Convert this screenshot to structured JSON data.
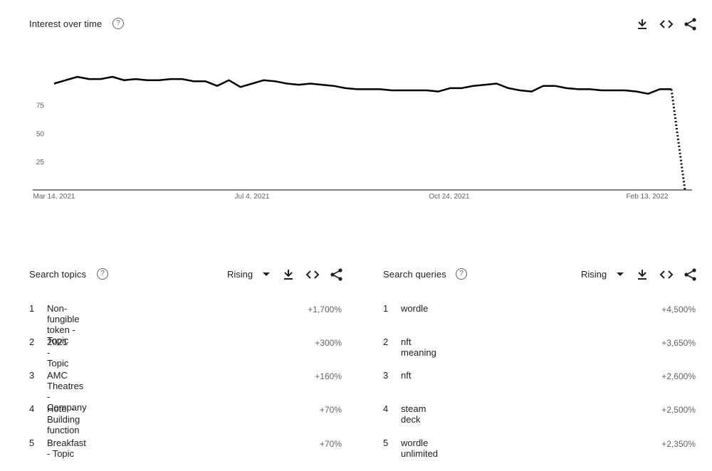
{
  "interest_over_time": {
    "title": "Interest over time",
    "help_symbol": "?",
    "icons": {
      "download": "download-icon",
      "embed": "embed-icon",
      "share": "share-icon"
    }
  },
  "chart_data": {
    "type": "line",
    "title": "Interest over time",
    "xlabel": "",
    "ylabel": "",
    "x_tick_labels": [
      "Mar 14, 2021",
      "Jul 4, 2021",
      "Oct 24, 2021",
      "Feb 13, 2022"
    ],
    "y_tick_labels": [
      "",
      "75",
      "50",
      "25"
    ],
    "y_ticks": [
      100,
      75,
      50,
      25
    ],
    "ylim": [
      0,
      105
    ],
    "grid": false,
    "line_color": "#000000",
    "series": [
      {
        "values": [
          94,
          97,
          100,
          98,
          98,
          100,
          97,
          98,
          97,
          97,
          98,
          98,
          96,
          96,
          92,
          97,
          91,
          94,
          97,
          96,
          94,
          93,
          94,
          93,
          92,
          90,
          89,
          89,
          89,
          88,
          88,
          88,
          88,
          87,
          90,
          90,
          92,
          93,
          94,
          90,
          88,
          87,
          92,
          92,
          90,
          89,
          89,
          88,
          88,
          88,
          87,
          85,
          89,
          89
        ],
        "final_partial_value": 0,
        "final_segment_style": "dotted"
      }
    ]
  },
  "topics": {
    "title": "Search topics",
    "help_symbol": "?",
    "select_value": "Rising",
    "items": [
      {
        "rank": "1",
        "label": "Non-fungible token - Topic",
        "value": "+1,700%"
      },
      {
        "rank": "2",
        "label": "2021 - Topic",
        "value": "+300%"
      },
      {
        "rank": "3",
        "label": "AMC Theatres - Company",
        "value": "+160%"
      },
      {
        "rank": "4",
        "label": "Hotel - Building function",
        "value": "+70%"
      },
      {
        "rank": "5",
        "label": "Breakfast - Topic",
        "value": "+70%"
      }
    ]
  },
  "queries": {
    "title": "Search queries",
    "help_symbol": "?",
    "select_value": "Rising",
    "items": [
      {
        "rank": "1",
        "label": "wordle",
        "value": "+4,500%"
      },
      {
        "rank": "2",
        "label": "nft meaning",
        "value": "+3,650%"
      },
      {
        "rank": "3",
        "label": "nft",
        "value": "+2,600%"
      },
      {
        "rank": "4",
        "label": "steam deck",
        "value": "+2,500%"
      },
      {
        "rank": "5",
        "label": "wordle unlimited",
        "value": "+2,350%"
      }
    ]
  }
}
